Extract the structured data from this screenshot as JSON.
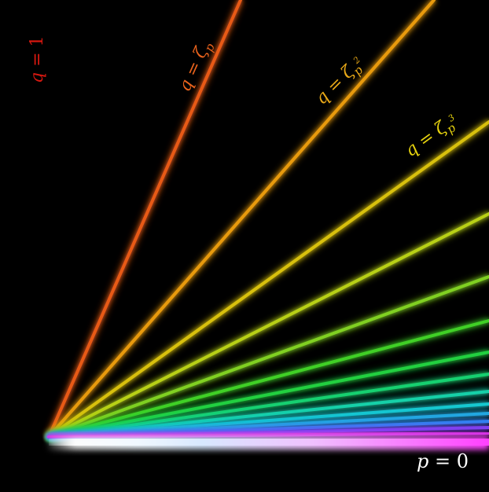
{
  "labels": {
    "q_one": {
      "var": "q",
      "eq": " = ",
      "val": "1",
      "color": "#d81810"
    },
    "q_zeta_p": {
      "var": "q",
      "eq": " = ",
      "zeta": "ζ",
      "sub": "p",
      "color": "#e8621c"
    },
    "q_zeta_p2": {
      "var": "q",
      "eq": " = ",
      "zeta": "ζ",
      "sub": "p",
      "sup": "2",
      "color": "#e8a818"
    },
    "q_zeta_p3": {
      "var": "q",
      "eq": " = ",
      "zeta": "ζ",
      "sub": "p",
      "sup": "3",
      "color": "#e6d20e"
    },
    "p_zero": {
      "var": "p",
      "eq": " = ",
      "val": "0",
      "color": "#ffffff"
    }
  },
  "rays": [
    {
      "name": "ray-q-1",
      "color": "#e01010"
    },
    {
      "name": "ray-q-zeta-p",
      "color": "#e85a14"
    },
    {
      "name": "ray-q-zeta-p2",
      "color": "#e89a10"
    },
    {
      "name": "ray-q-zeta-p3",
      "color": "#d8c010"
    },
    {
      "name": "ray-5",
      "color": "#b8d018"
    },
    {
      "name": "ray-6",
      "color": "#80d020"
    },
    {
      "name": "ray-7",
      "color": "#40d028"
    },
    {
      "name": "ray-8",
      "color": "#20d040"
    },
    {
      "name": "ray-9",
      "color": "#18d070"
    },
    {
      "name": "ray-10",
      "color": "#18d0a8"
    },
    {
      "name": "ray-11",
      "color": "#18c8d0"
    },
    {
      "name": "ray-12",
      "color": "#20a8e0"
    },
    {
      "name": "ray-13",
      "color": "#3080f0"
    },
    {
      "name": "ray-14",
      "color": "#8040f0"
    },
    {
      "name": "ray-15",
      "color": "#d030e0"
    }
  ]
}
